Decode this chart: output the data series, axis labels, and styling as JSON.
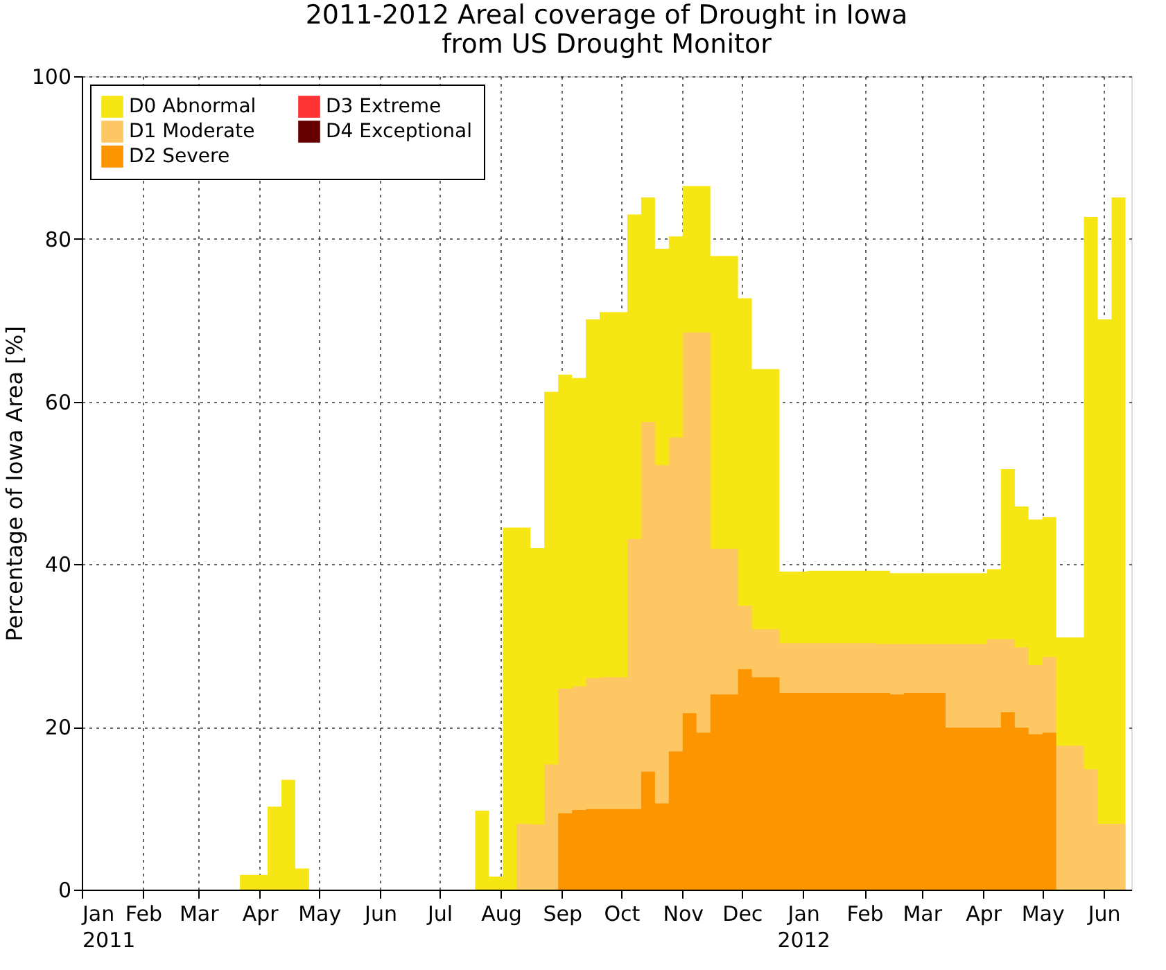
{
  "chart_data": {
    "type": "area",
    "title": "2011-2012 Areal coverage of Drought in Iowa\nfrom US Drought Monitor",
    "ylabel": "Percentage of Iowa Area [%]",
    "x": [
      "2011-01-04",
      "2011-01-11",
      "2011-01-18",
      "2011-01-25",
      "2011-02-01",
      "2011-02-08",
      "2011-02-15",
      "2011-02-22",
      "2011-03-01",
      "2011-03-08",
      "2011-03-15",
      "2011-03-22",
      "2011-03-29",
      "2011-04-05",
      "2011-04-12",
      "2011-04-19",
      "2011-04-26",
      "2011-05-03",
      "2011-05-10",
      "2011-05-17",
      "2011-05-24",
      "2011-05-31",
      "2011-06-07",
      "2011-06-14",
      "2011-06-21",
      "2011-06-28",
      "2011-07-05",
      "2011-07-12",
      "2011-07-19",
      "2011-07-26",
      "2011-08-02",
      "2011-08-09",
      "2011-08-16",
      "2011-08-23",
      "2011-08-30",
      "2011-09-06",
      "2011-09-13",
      "2011-09-20",
      "2011-09-27",
      "2011-10-04",
      "2011-10-11",
      "2011-10-18",
      "2011-10-25",
      "2011-11-01",
      "2011-11-08",
      "2011-11-15",
      "2011-11-22",
      "2011-11-29",
      "2011-12-06",
      "2011-12-13",
      "2011-12-20",
      "2011-12-27",
      "2012-01-03",
      "2012-01-10",
      "2012-01-17",
      "2012-01-24",
      "2012-01-31",
      "2012-02-07",
      "2012-02-14",
      "2012-02-21",
      "2012-02-28",
      "2012-03-06",
      "2012-03-13",
      "2012-03-20",
      "2012-03-27",
      "2012-04-03",
      "2012-04-10",
      "2012-04-17",
      "2012-04-24",
      "2012-05-01",
      "2012-05-08",
      "2012-05-15",
      "2012-05-22",
      "2012-05-29",
      "2012-06-05",
      "2012-06-12"
    ],
    "series": [
      {
        "name": "D0 Abnormal",
        "color": "#f5e614",
        "values": [
          0,
          0,
          0,
          0,
          0,
          0,
          0,
          0,
          0,
          0,
          0,
          1.8,
          1.8,
          10.2,
          13.5,
          2.6,
          0,
          0,
          0,
          0,
          0,
          0,
          0,
          0,
          0,
          0,
          0,
          0,
          9.7,
          1.6,
          44.5,
          44.5,
          42.0,
          61.2,
          63.3,
          62.9,
          70.1,
          71.0,
          71.0,
          83.0,
          85.1,
          78.8,
          80.3,
          86.5,
          86.5,
          77.9,
          77.9,
          72.7,
          64.0,
          64.0,
          39.1,
          39.1,
          39.2,
          39.2,
          39.2,
          39.2,
          39.2,
          39.2,
          38.9,
          38.9,
          38.9,
          38.9,
          38.9,
          38.9,
          38.9,
          39.4,
          51.7,
          47.1,
          45.5,
          45.8,
          31.0,
          31.0,
          82.7,
          70.1,
          85.1,
          85.1
        ]
      },
      {
        "name": "D1 Moderate",
        "color": "#fdc864",
        "values": [
          0,
          0,
          0,
          0,
          0,
          0,
          0,
          0,
          0,
          0,
          0,
          0,
          0,
          0,
          0,
          0,
          0,
          0,
          0,
          0,
          0,
          0,
          0,
          0,
          0,
          0,
          0,
          0,
          0,
          0,
          0,
          8.1,
          8.0,
          15.4,
          24.7,
          25.0,
          26.0,
          26.1,
          26.1,
          43.1,
          57.5,
          52.2,
          55.6,
          68.5,
          68.5,
          41.9,
          41.9,
          34.9,
          32.0,
          32.0,
          30.3,
          30.3,
          30.3,
          30.3,
          30.3,
          30.3,
          30.3,
          30.2,
          30.2,
          30.2,
          30.2,
          30.2,
          30.2,
          30.2,
          30.2,
          30.8,
          30.8,
          29.8,
          27.6,
          28.6,
          17.7,
          17.7,
          14.8,
          8.1,
          8.1,
          8.1
        ]
      },
      {
        "name": "D2 Severe",
        "color": "#fd9500",
        "values": [
          0,
          0,
          0,
          0,
          0,
          0,
          0,
          0,
          0,
          0,
          0,
          0,
          0,
          0,
          0,
          0,
          0,
          0,
          0,
          0,
          0,
          0,
          0,
          0,
          0,
          0,
          0,
          0,
          0,
          0,
          0,
          0,
          0,
          0,
          9.4,
          9.8,
          9.9,
          9.9,
          9.9,
          9.9,
          14.5,
          10.6,
          17.0,
          21.7,
          19.3,
          24.0,
          24.0,
          27.1,
          26.1,
          26.1,
          24.2,
          24.2,
          24.2,
          24.2,
          24.2,
          24.2,
          24.2,
          24.2,
          24.0,
          24.2,
          24.2,
          24.2,
          19.9,
          19.9,
          19.9,
          19.9,
          21.8,
          19.9,
          19.1,
          19.3,
          0,
          0,
          0,
          0,
          0,
          0
        ]
      },
      {
        "name": "D3 Extreme",
        "color": "#ff3333",
        "values": [
          null,
          null,
          null,
          null,
          null,
          null,
          null,
          null,
          null,
          null,
          null,
          null,
          null,
          null,
          null,
          null,
          null,
          null,
          null,
          null,
          null,
          null,
          null,
          null,
          null,
          null,
          null,
          null,
          null,
          null,
          null,
          null,
          null,
          null,
          null,
          null,
          null,
          null,
          null,
          null,
          null,
          null,
          null,
          null,
          null,
          null,
          null,
          null,
          null,
          null,
          null,
          null,
          null,
          null,
          null,
          null,
          null,
          null,
          null,
          null,
          null,
          null,
          null,
          null,
          null,
          null,
          null,
          null,
          null,
          null,
          null,
          null,
          null,
          null,
          null,
          null
        ]
      },
      {
        "name": "D4 Exceptional",
        "color": "#660000",
        "values": [
          null,
          null,
          null,
          null,
          null,
          null,
          null,
          null,
          null,
          null,
          null,
          null,
          null,
          null,
          null,
          null,
          null,
          null,
          null,
          null,
          null,
          null,
          null,
          null,
          null,
          null,
          null,
          null,
          null,
          null,
          null,
          null,
          null,
          null,
          null,
          null,
          null,
          null,
          null,
          null,
          null,
          null,
          null,
          null,
          null,
          null,
          null,
          null,
          null,
          null,
          null,
          null,
          null,
          null,
          null,
          null,
          null,
          null,
          null,
          null,
          null,
          null,
          null,
          null,
          null,
          null,
          null,
          null,
          null,
          null,
          null,
          null,
          null,
          null,
          null,
          null
        ]
      }
    ],
    "xlim": [
      "2011-01-01",
      "2012-06-15"
    ],
    "xticks": [
      {
        "value": "2011-01-01",
        "label": "Jan\n2011"
      },
      {
        "value": "2011-02-01",
        "label": "Feb"
      },
      {
        "value": "2011-03-01",
        "label": "Mar"
      },
      {
        "value": "2011-04-01",
        "label": "Apr"
      },
      {
        "value": "2011-05-01",
        "label": "May"
      },
      {
        "value": "2011-06-01",
        "label": "Jun"
      },
      {
        "value": "2011-07-01",
        "label": "Jul"
      },
      {
        "value": "2011-08-01",
        "label": "Aug"
      },
      {
        "value": "2011-09-01",
        "label": "Sep"
      },
      {
        "value": "2011-10-01",
        "label": "Oct"
      },
      {
        "value": "2011-11-01",
        "label": "Nov"
      },
      {
        "value": "2011-12-01",
        "label": "Dec"
      },
      {
        "value": "2012-01-01",
        "label": "Jan\n2012"
      },
      {
        "value": "2012-02-01",
        "label": "Feb"
      },
      {
        "value": "2012-03-01",
        "label": "Mar"
      },
      {
        "value": "2012-04-01",
        "label": "Apr"
      },
      {
        "value": "2012-05-01",
        "label": "May"
      },
      {
        "value": "2012-06-01",
        "label": "Jun"
      }
    ],
    "ylim": [
      0,
      100
    ],
    "yticks": [
      0,
      20,
      40,
      60,
      80,
      100
    ],
    "grid": true,
    "legend": "top left"
  }
}
